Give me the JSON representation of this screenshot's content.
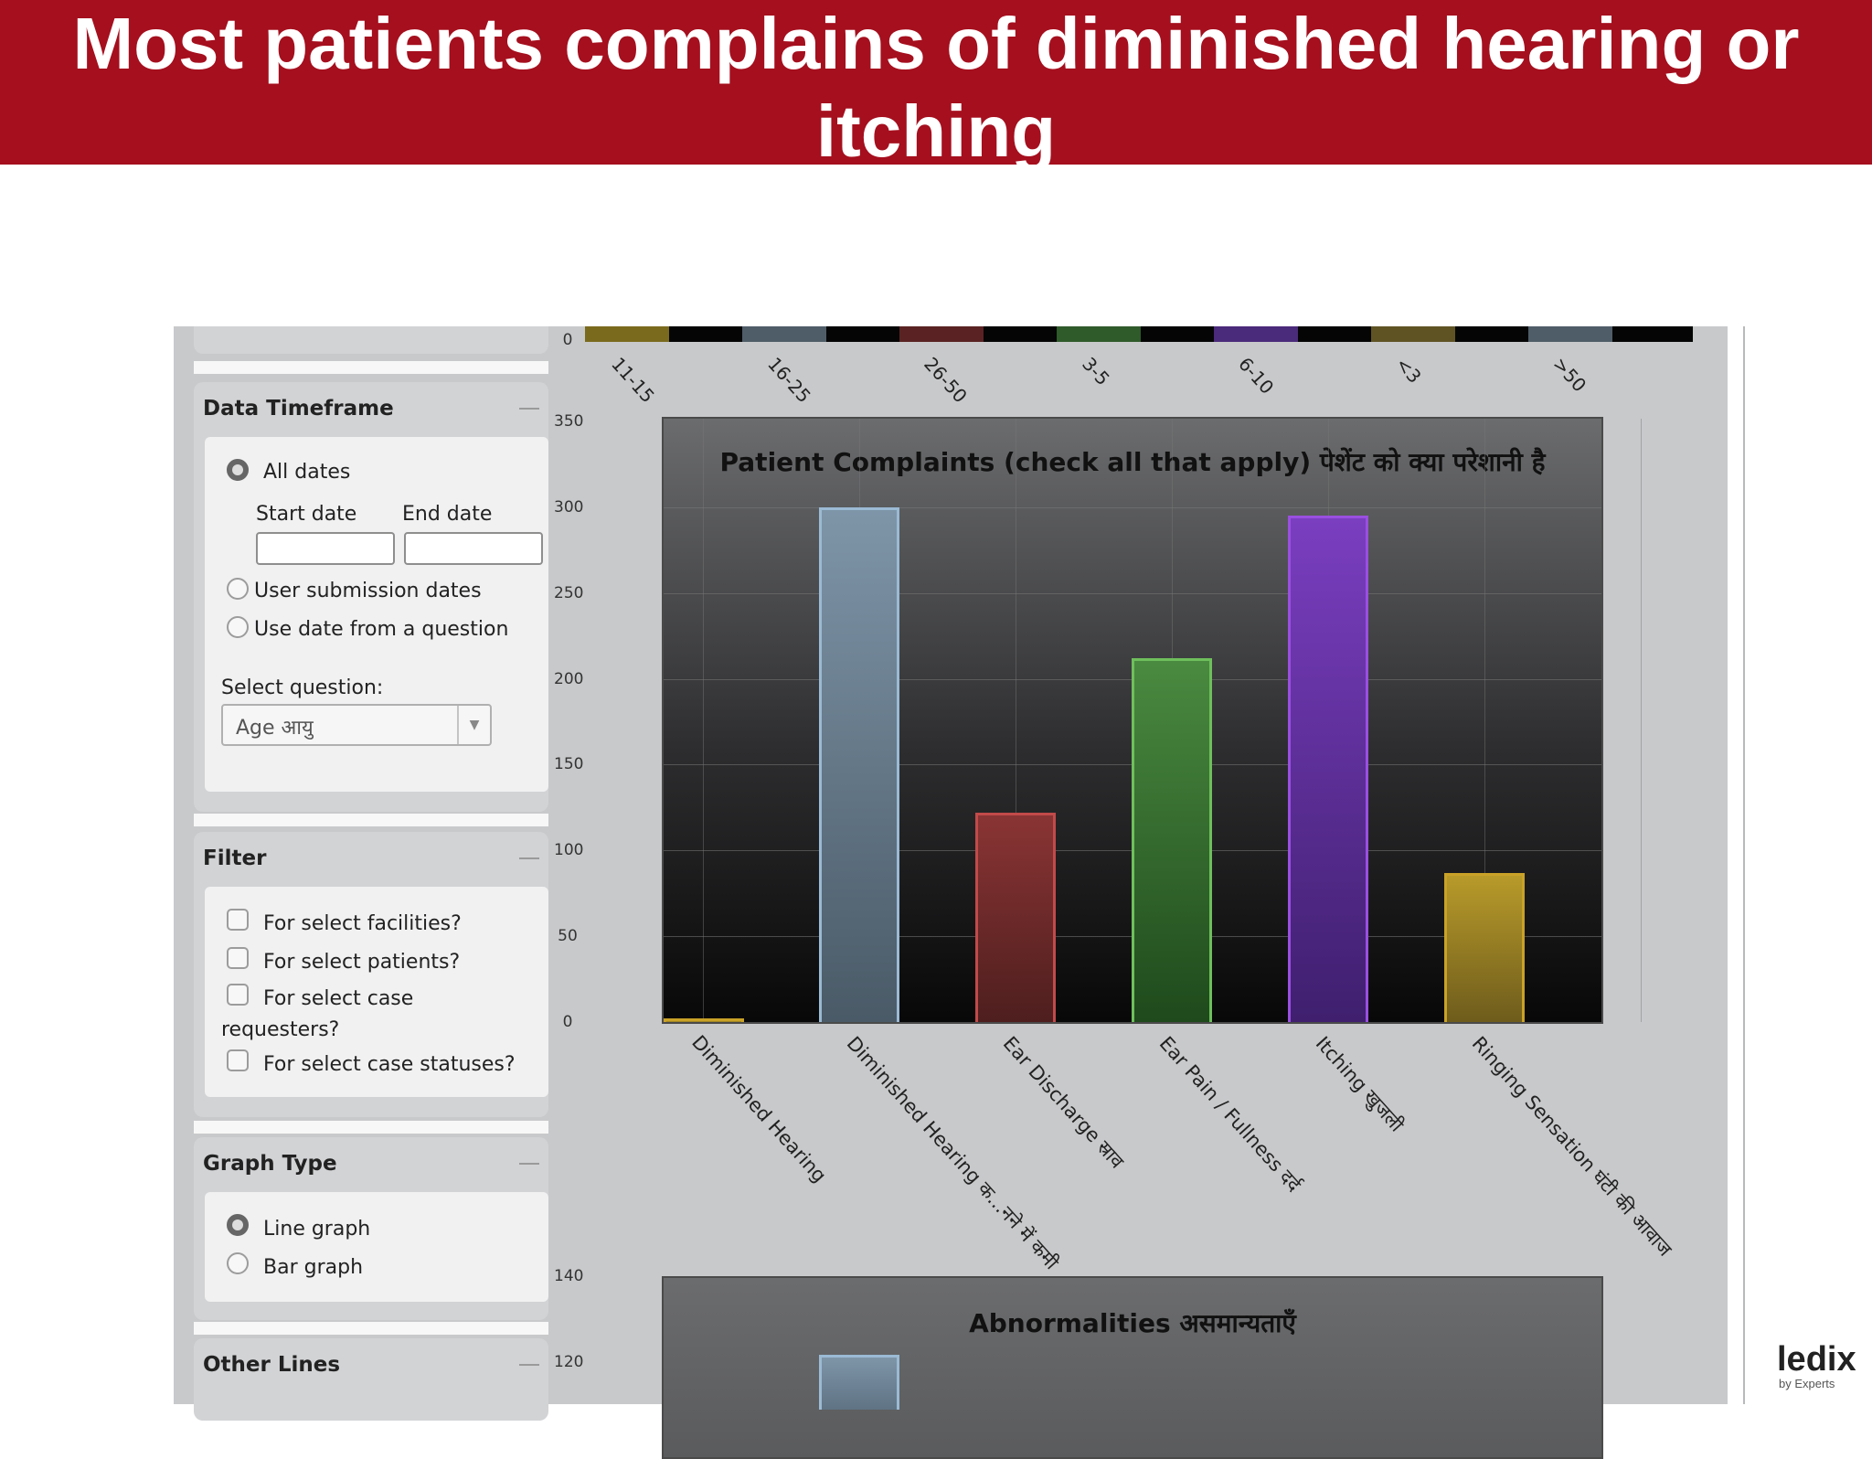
{
  "slide": {
    "title": "Most patients complains of diminished hearing or itching",
    "logo": {
      "name": "ledix",
      "tagline": "by Experts"
    }
  },
  "data_timeframe": {
    "heading": "Data Timeframe",
    "all_dates": "All dates",
    "start_date_label": "Start date",
    "end_date_label": "End date",
    "start_date_value": "",
    "end_date_value": "",
    "user_submission": "User submission dates",
    "use_date_question": "Use date from a question",
    "select_question_label": "Select question:",
    "select_question_value": "Age आयु"
  },
  "filter": {
    "heading": "Filter",
    "facilities": "For select facilities?",
    "patients": "For select patients?",
    "case_requesters_1": "For select case",
    "case_requesters_2": "requesters?",
    "case_statuses": "For select case statuses?"
  },
  "graph_type": {
    "heading": "Graph Type",
    "line": "Line graph",
    "bar": "Bar graph",
    "selected": "Line graph"
  },
  "other_lines": {
    "heading": "Other Lines"
  },
  "colors": {
    "banner": "#a50f1e",
    "bar_yellow": "#c9a227",
    "bar_blue": "#9bbad4",
    "bar_red": "#c24a4a",
    "bar_green": "#6fbf5c",
    "bar_purple": "#9a4fe0"
  },
  "chart_data": [
    {
      "type": "bar",
      "title": "",
      "categories": [
        "11-15",
        "16-25",
        "26-50",
        "3-5",
        "6-10",
        "<3",
        ">50"
      ],
      "yticks": [
        "0"
      ],
      "partially_visible": true
    },
    {
      "type": "bar",
      "title": "Patient Complaints (check all that apply) पेशेंट को क्या परेशानी है",
      "categories": [
        "Diminished Hearing",
        "Diminished Hearing क...नने में कमी",
        "Ear Discharge स्राव",
        "Ear Pain / Fullness दर्द",
        "Itching खुजली",
        "Ringing Sensation घंटी की आवाज"
      ],
      "values": [
        2,
        300,
        122,
        212,
        295,
        87
      ],
      "ylim": [
        0,
        350
      ],
      "yticks": [
        "0",
        "50",
        "100",
        "150",
        "200",
        "250",
        "300",
        "350"
      ],
      "grid": true
    },
    {
      "type": "bar",
      "title": "Abnormalities असमान्यताएँ",
      "yticks": [
        "120",
        "140"
      ],
      "values_visible": [
        121
      ],
      "partially_visible": true
    }
  ]
}
